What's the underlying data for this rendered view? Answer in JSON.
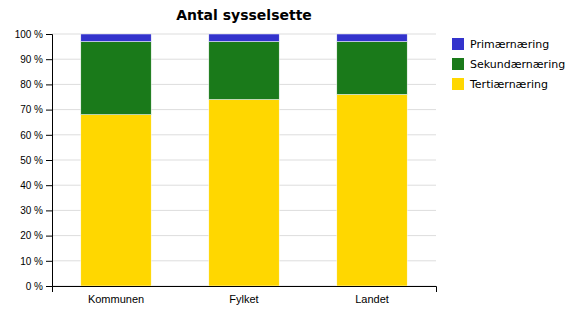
{
  "chart_data": {
    "type": "bar",
    "title": "Antal sysselsette",
    "categories": [
      "Kommunen",
      "Fylket",
      "Landet"
    ],
    "series": [
      {
        "name": "Tertiærnæring",
        "color": "#FFD700",
        "values": [
          68,
          74,
          76
        ]
      },
      {
        "name": "Sekundærnæring",
        "color": "#1a7a1a",
        "values": [
          29,
          23,
          21
        ]
      },
      {
        "name": "Primærnæring",
        "color": "#3333cc",
        "values": [
          3,
          3,
          3
        ]
      }
    ],
    "stacked": true,
    "ylim": [
      0,
      100
    ],
    "yticks": [
      {
        "value": 0,
        "label": "0 %"
      },
      {
        "value": 10,
        "label": "10 %"
      },
      {
        "value": 20,
        "label": "20 %"
      },
      {
        "value": 30,
        "label": "30 %"
      },
      {
        "value": 40,
        "label": "40 %"
      },
      {
        "value": 50,
        "label": "50 %"
      },
      {
        "value": 60,
        "label": "60 %"
      },
      {
        "value": 70,
        "label": "70 %"
      },
      {
        "value": 80,
        "label": "80 %"
      },
      {
        "value": 90,
        "label": "90 %"
      },
      {
        "value": 100,
        "label": "100 %"
      }
    ],
    "grid": true,
    "legend": "right"
  }
}
